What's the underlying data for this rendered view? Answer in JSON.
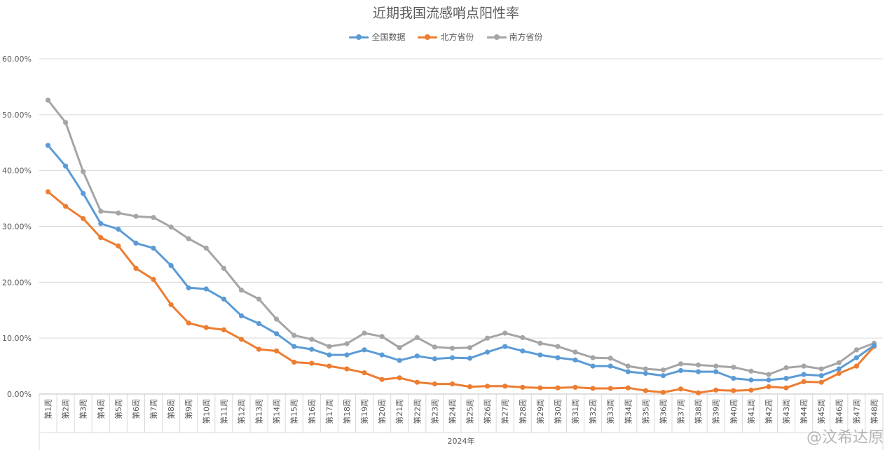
{
  "watermark": "@汶希达原",
  "chart_data": {
    "type": "line",
    "title": "近期我国流感哨点阳性率",
    "xlabel": "2024年",
    "ylabel": "",
    "ylim": [
      0,
      0.6
    ],
    "yticks": [
      "0.00%",
      "10.00%",
      "20.00%",
      "30.00%",
      "40.00%",
      "50.00%",
      "60.00%"
    ],
    "legend_position": "top-center",
    "grid": true,
    "categories": [
      "第1周",
      "第2周",
      "第3周",
      "第4周",
      "第5周",
      "第6周",
      "第7周",
      "第8周",
      "第9周",
      "第10周",
      "第11周",
      "第12周",
      "第13周",
      "第14周",
      "第15周",
      "第16周",
      "第17周",
      "第18周",
      "第19周",
      "第20周",
      "第21周",
      "第22周",
      "第23周",
      "第24周",
      "第25周",
      "第26周",
      "第27周",
      "第28周",
      "第29周",
      "第30周",
      "第31周",
      "第32周",
      "第33周",
      "第34周",
      "第35周",
      "第36周",
      "第37周",
      "第38周",
      "第39周",
      "第40周",
      "第41周",
      "第42周",
      "第43周",
      "第44周",
      "第45周",
      "第46周",
      "第47周",
      "第48周"
    ],
    "series": [
      {
        "name": "全国数据",
        "color": "#5B9BD5",
        "values": [
          0.445,
          0.408,
          0.359,
          0.305,
          0.295,
          0.27,
          0.261,
          0.23,
          0.19,
          0.188,
          0.17,
          0.14,
          0.126,
          0.108,
          0.085,
          0.08,
          0.07,
          0.07,
          0.079,
          0.07,
          0.06,
          0.068,
          0.063,
          0.065,
          0.064,
          0.075,
          0.085,
          0.077,
          0.07,
          0.065,
          0.061,
          0.05,
          0.05,
          0.04,
          0.037,
          0.033,
          0.042,
          0.04,
          0.04,
          0.028,
          0.025,
          0.025,
          0.028,
          0.035,
          0.033,
          0.045,
          0.065,
          0.087
        ]
      },
      {
        "name": "北方省份",
        "color": "#ED7D31",
        "values": [
          0.362,
          0.336,
          0.314,
          0.28,
          0.265,
          0.225,
          0.205,
          0.16,
          0.127,
          0.119,
          0.115,
          0.098,
          0.08,
          0.077,
          0.057,
          0.055,
          0.05,
          0.045,
          0.038,
          0.026,
          0.029,
          0.021,
          0.018,
          0.018,
          0.013,
          0.014,
          0.014,
          0.012,
          0.011,
          0.011,
          0.012,
          0.01,
          0.01,
          0.011,
          0.006,
          0.003,
          0.009,
          0.002,
          0.007,
          0.006,
          0.007,
          0.013,
          0.011,
          0.022,
          0.021,
          0.037,
          0.05,
          0.085
        ]
      },
      {
        "name": "南方省份",
        "color": "#A5A5A5",
        "values": [
          0.526,
          0.486,
          0.398,
          0.327,
          0.324,
          0.318,
          0.316,
          0.299,
          0.278,
          0.261,
          0.225,
          0.186,
          0.17,
          0.134,
          0.105,
          0.098,
          0.085,
          0.09,
          0.109,
          0.103,
          0.083,
          0.101,
          0.084,
          0.082,
          0.083,
          0.1,
          0.109,
          0.101,
          0.091,
          0.085,
          0.075,
          0.065,
          0.064,
          0.05,
          0.045,
          0.043,
          0.054,
          0.052,
          0.05,
          0.048,
          0.041,
          0.035,
          0.047,
          0.05,
          0.045,
          0.056,
          0.079,
          0.091
        ]
      }
    ]
  }
}
